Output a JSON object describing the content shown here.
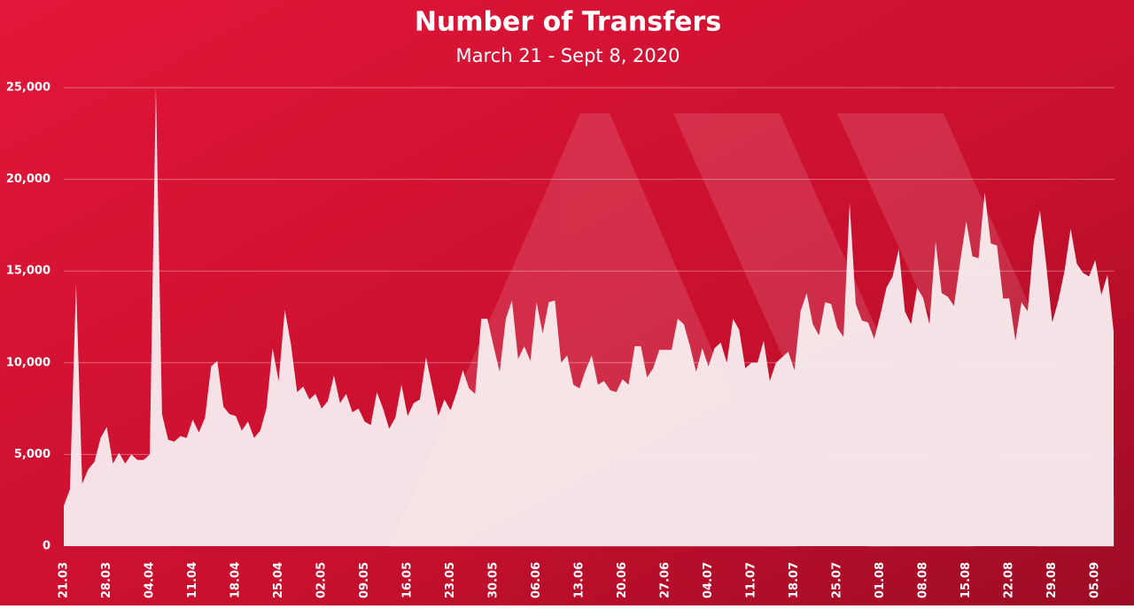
{
  "chart_data": {
    "type": "area",
    "title": "Number of Transfers",
    "subtitle": "March 21 - Sept 8, 2020",
    "categories": [
      "21.03",
      null,
      null,
      null,
      null,
      null,
      null,
      "28.03",
      null,
      null,
      null,
      null,
      null,
      null,
      "04.04",
      null,
      null,
      null,
      null,
      null,
      null,
      "11.04",
      null,
      null,
      null,
      null,
      null,
      null,
      "18.04",
      null,
      null,
      null,
      null,
      null,
      null,
      "25.04",
      null,
      null,
      null,
      null,
      null,
      null,
      "02.05",
      null,
      null,
      null,
      null,
      null,
      null,
      "09.05",
      null,
      null,
      null,
      null,
      null,
      null,
      "16.05",
      null,
      null,
      null,
      null,
      null,
      null,
      "23.05",
      null,
      null,
      null,
      null,
      null,
      null,
      "30.05",
      null,
      null,
      null,
      null,
      null,
      null,
      "06.06",
      null,
      null,
      null,
      null,
      null,
      null,
      "13.06",
      null,
      null,
      null,
      null,
      null,
      null,
      "20.06",
      null,
      null,
      null,
      null,
      null,
      null,
      "27.06",
      null,
      null,
      null,
      null,
      null,
      null,
      "04.07",
      null,
      null,
      null,
      null,
      null,
      null,
      "11.07",
      null,
      null,
      null,
      null,
      null,
      null,
      "18.07",
      null,
      null,
      null,
      null,
      null,
      null,
      "25.07",
      null,
      null,
      null,
      null,
      null,
      null,
      "01.08",
      null,
      null,
      null,
      null,
      null,
      null,
      "08.08",
      null,
      null,
      null,
      null,
      null,
      null,
      "15.08",
      null,
      null,
      null,
      null,
      null,
      null,
      "22.08",
      null,
      null,
      null,
      null,
      null,
      null,
      "29.08",
      null,
      null,
      null,
      null,
      null,
      null,
      "05.09",
      null,
      null,
      null
    ],
    "values": [
      2200,
      3100,
      14300,
      3400,
      4200,
      4600,
      5900,
      6500,
      4500,
      5100,
      4500,
      5000,
      4700,
      4700,
      5000,
      25000,
      7200,
      5800,
      5700,
      6000,
      5900,
      6900,
      6200,
      7000,
      9800,
      10100,
      7600,
      7200,
      7100,
      6300,
      6800,
      5900,
      6300,
      7500,
      10800,
      9000,
      12900,
      11000,
      8400,
      8700,
      8000,
      8300,
      7500,
      7900,
      9300,
      7800,
      8300,
      7300,
      7500,
      6800,
      6600,
      8400,
      7500,
      6400,
      7000,
      8800,
      7100,
      7800,
      8000,
      10300,
      8700,
      7100,
      8000,
      7400,
      8400,
      9600,
      8600,
      8300,
      12400,
      12400,
      10900,
      9500,
      12400,
      13400,
      10200,
      10900,
      10100,
      13300,
      11600,
      13300,
      13400,
      10000,
      10400,
      8800,
      8600,
      9600,
      10400,
      8800,
      9000,
      8500,
      8400,
      9100,
      8800,
      10900,
      10900,
      9200,
      9700,
      10700,
      10700,
      10700,
      12400,
      12100,
      10900,
      9500,
      10800,
      9800,
      10800,
      11100,
      10000,
      12400,
      11800,
      9700,
      10000,
      10000,
      11200,
      9000,
      10000,
      10300,
      10600,
      9600,
      12800,
      13800,
      12100,
      11500,
      13300,
      13200,
      11900,
      11400,
      18700,
      13200,
      12300,
      12200,
      11300,
      12600,
      14100,
      14700,
      16200,
      12800,
      12100,
      14100,
      13500,
      12100,
      16600,
      13800,
      13600,
      13100,
      15500,
      17700,
      15800,
      15700,
      19300,
      16500,
      16400,
      13500,
      13500,
      11200,
      13300,
      12800,
      16600,
      18300,
      15400,
      12200,
      13400,
      15000,
      17300,
      15400,
      14900,
      14700,
      15600,
      13700,
      14800,
      11700
    ],
    "color": "#f8eef0",
    "ylim": [
      0,
      25000
    ],
    "yticks": [
      0,
      {
        "value": 5000,
        "label": "5,000"
      },
      {
        "value": 10000,
        "label": "10,000"
      },
      {
        "value": 15000,
        "label": "15,000"
      },
      {
        "value": 20000,
        "label": "20,000"
      },
      {
        "value": 25000,
        "label": "25,000"
      }
    ],
    "grid": true
  }
}
